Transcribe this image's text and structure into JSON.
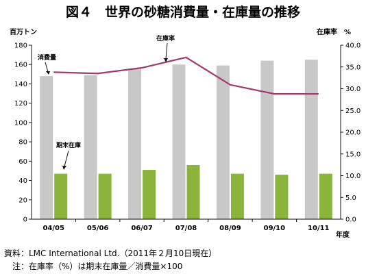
{
  "chart_data": {
    "type": "bar",
    "title": "図４　世界の砂糖消費量・在庫量の推移",
    "categories": [
      "04/05",
      "05/06",
      "06/07",
      "07/08",
      "08/09",
      "09/10",
      "10/11"
    ],
    "left_axis": {
      "label": "百万トン",
      "ylim": [
        0,
        180
      ],
      "ticks": [
        "0",
        "20",
        "40",
        "60",
        "80",
        "100",
        "120",
        "140",
        "160",
        "180"
      ]
    },
    "right_axis": {
      "label": "在庫率　%",
      "ylim": [
        0,
        40
      ],
      "ticks": [
        "0.0",
        "5.0",
        "10.0",
        "15.0",
        "20.0",
        "25.0",
        "30.0",
        "35.0",
        "40.0"
      ]
    },
    "xlabel": "年度",
    "series": [
      {
        "name": "消費量",
        "type": "bar",
        "axis": "left",
        "color": "#c8c8c8",
        "values": [
          148,
          149,
          156,
          160,
          159,
          164,
          165
        ]
      },
      {
        "name": "期末在庫",
        "type": "bar",
        "axis": "left",
        "color": "#8ab43c",
        "values": [
          47,
          47,
          51,
          56,
          47,
          46,
          47
        ]
      },
      {
        "name": "在庫率",
        "type": "line",
        "axis": "right",
        "color": "#a6386a",
        "values": [
          33.8,
          33.5,
          34.8,
          37.2,
          30.9,
          28.8,
          28.8
        ]
      }
    ],
    "annotations": {
      "consumption_label": "消費量",
      "stock_label": "期末在庫",
      "ratio_label": "在庫率"
    },
    "grid": false
  },
  "notes": {
    "source": "資料：LMC International Ltd.（2011年２月10日現在）",
    "note": "　注：在庫率（%）は期末在庫量／消費量×100"
  }
}
